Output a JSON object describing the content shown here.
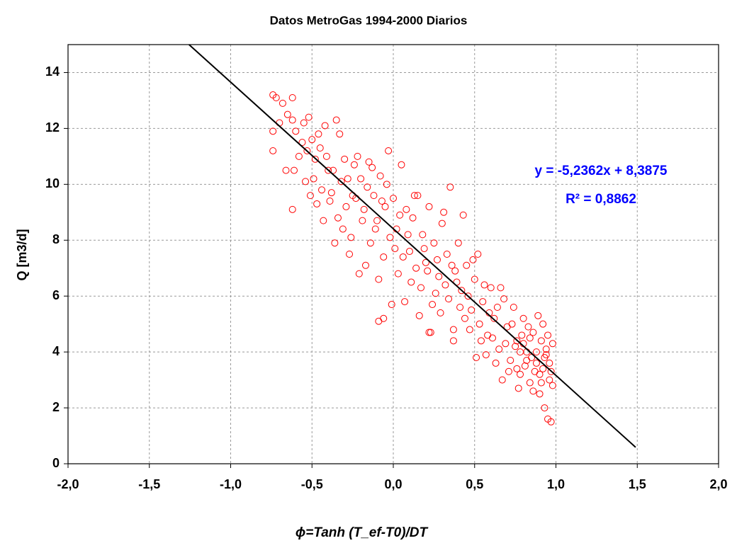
{
  "chart_data": {
    "type": "scatter",
    "title": "Datos MetroGas  1994-2000  Diarios",
    "x_label": "ϕ=Tanh (T_ef-T0)/DT",
    "y_label": "Q [m3/d]",
    "annotations": [
      "y = -5,2362x + 8,3875",
      "R² = 0,8862"
    ],
    "annotation_color": "#0000ff",
    "xlim": [
      -2,
      2
    ],
    "ylim": [
      0,
      15
    ],
    "xticks": [
      {
        "value": -2,
        "label": "-2,0"
      },
      {
        "value": -1.5,
        "label": "-1,5"
      },
      {
        "value": -1,
        "label": "-1,0"
      },
      {
        "value": -0.5,
        "label": "-0,5"
      },
      {
        "value": 0,
        "label": "0,0"
      },
      {
        "value": 0.5,
        "label": "0,5"
      },
      {
        "value": 1,
        "label": "1,0"
      },
      {
        "value": 1.5,
        "label": "1,5"
      },
      {
        "value": 2,
        "label": "2,0"
      }
    ],
    "yticks": [
      0,
      2,
      4,
      6,
      8,
      10,
      12,
      14
    ],
    "grid": true,
    "series": [
      {
        "type": "scatter",
        "color": "#ff0000",
        "x": [
          -0.74,
          -0.72,
          -0.62,
          -0.68,
          -0.74,
          -0.74,
          -0.7,
          -0.65,
          -0.62,
          -0.6,
          -0.66,
          -0.61,
          -0.62,
          -0.55,
          -0.52,
          -0.5,
          -0.48,
          -0.45,
          -0.42,
          -0.4,
          -0.38,
          -0.35,
          -0.33,
          -0.3,
          -0.28,
          -0.25,
          -0.22,
          -0.2,
          -0.18,
          -0.15,
          -0.12,
          -0.1,
          -0.08,
          -0.05,
          -0.03,
          0.0,
          0.02,
          0.05,
          0.08,
          0.1,
          0.12,
          0.15,
          0.18,
          0.2,
          0.22,
          0.25,
          0.28,
          0.3,
          0.33,
          0.35,
          0.38,
          0.4,
          0.42,
          0.45,
          0.48,
          0.5,
          0.52,
          0.55,
          0.58,
          0.6,
          0.62,
          0.65,
          0.68,
          0.7,
          0.72,
          0.74,
          0.76,
          0.78,
          0.8,
          0.82,
          0.84,
          0.86,
          0.88,
          0.9,
          0.92,
          0.94,
          0.96,
          0.97,
          0.95,
          0.93,
          0.98,
          0.91,
          0.89,
          0.87,
          0.85,
          0.83,
          0.81,
          0.79,
          0.77,
          0.75,
          0.73,
          0.71,
          0.69,
          0.67,
          0.66,
          0.64,
          0.63,
          0.61,
          0.59,
          0.57,
          0.56,
          0.54,
          0.53,
          0.51,
          0.49,
          0.47,
          0.46,
          0.44,
          0.43,
          0.41,
          0.39,
          0.37,
          0.36,
          0.34,
          0.32,
          0.31,
          0.29,
          0.27,
          0.26,
          0.24,
          0.23,
          0.21,
          0.19,
          0.17,
          0.16,
          0.14,
          0.13,
          0.11,
          0.09,
          0.07,
          0.06,
          0.04,
          0.03,
          0.01,
          -0.01,
          -0.02,
          -0.04,
          -0.06,
          -0.07,
          -0.09,
          -0.11,
          -0.13,
          -0.14,
          -0.16,
          -0.17,
          -0.19,
          -0.21,
          -0.23,
          -0.24,
          -0.26,
          -0.27,
          -0.29,
          -0.31,
          -0.32,
          -0.34,
          -0.36,
          -0.37,
          -0.39,
          -0.41,
          -0.43,
          -0.44,
          -0.46,
          -0.47,
          -0.49,
          -0.51,
          -0.53,
          -0.54,
          -0.56,
          -0.58,
          -0.09,
          -0.06,
          0.22,
          0.37,
          0.9,
          0.92,
          0.94,
          0.96,
          0.86,
          0.88,
          0.8,
          0.82,
          0.78,
          0.76,
          0.84,
          0.98,
          0.97,
          0.95,
          0.93,
          0.91
        ],
        "values": [
          13.2,
          13.1,
          13.1,
          12.9,
          11.9,
          11.2,
          12.2,
          12.5,
          12.3,
          11.9,
          10.5,
          10.5,
          9.1,
          12.2,
          12.4,
          11.6,
          10.9,
          11.3,
          12.1,
          10.5,
          9.7,
          12.3,
          11.8,
          10.9,
          10.2,
          9.6,
          11.0,
          10.2,
          9.1,
          10.8,
          9.6,
          8.7,
          10.3,
          9.2,
          11.2,
          9.5,
          8.4,
          10.7,
          9.1,
          7.6,
          8.8,
          9.6,
          8.2,
          7.2,
          9.2,
          7.9,
          6.7,
          8.6,
          7.5,
          9.9,
          6.9,
          7.9,
          6.2,
          7.1,
          5.5,
          6.6,
          7.5,
          5.8,
          4.6,
          6.3,
          5.2,
          4.1,
          5.9,
          4.9,
          3.7,
          5.6,
          4.4,
          3.2,
          5.2,
          4.0,
          2.9,
          4.7,
          3.6,
          2.5,
          5.0,
          3.9,
          3.0,
          1.5,
          1.6,
          2.0,
          4.3,
          4.4,
          5.3,
          3.3,
          3.8,
          4.9,
          3.5,
          4.6,
          2.7,
          4.2,
          5.0,
          3.3,
          4.3,
          3.0,
          6.3,
          5.6,
          3.6,
          4.5,
          5.4,
          3.9,
          6.4,
          4.4,
          5.0,
          3.8,
          7.3,
          4.8,
          6.0,
          5.2,
          8.9,
          5.6,
          6.5,
          4.8,
          7.1,
          5.9,
          6.4,
          9.0,
          5.4,
          7.3,
          6.1,
          5.7,
          4.7,
          6.9,
          7.7,
          6.3,
          5.3,
          7.0,
          9.6,
          6.5,
          8.2,
          5.8,
          7.4,
          8.9,
          6.8,
          7.7,
          5.7,
          8.1,
          10.0,
          7.4,
          9.4,
          6.6,
          8.4,
          10.6,
          7.9,
          9.9,
          7.1,
          8.7,
          6.8,
          9.5,
          10.7,
          8.1,
          7.5,
          9.2,
          8.4,
          10.1,
          8.8,
          7.9,
          10.5,
          9.4,
          11.0,
          8.7,
          9.8,
          11.8,
          9.3,
          10.2,
          9.6,
          11.2,
          10.1,
          11.5,
          11.0,
          5.1,
          5.2,
          4.7,
          4.4,
          3.2,
          3.4,
          4.1,
          3.6,
          2.6,
          4.0,
          4.3,
          3.7,
          4.0,
          3.4,
          4.5,
          2.8,
          3.3,
          4.6,
          3.8,
          2.9
        ]
      },
      {
        "type": "line",
        "color": "#000000",
        "x": [
          -1.256,
          1.49
        ],
        "values": [
          15.0,
          0.59
        ]
      }
    ]
  }
}
